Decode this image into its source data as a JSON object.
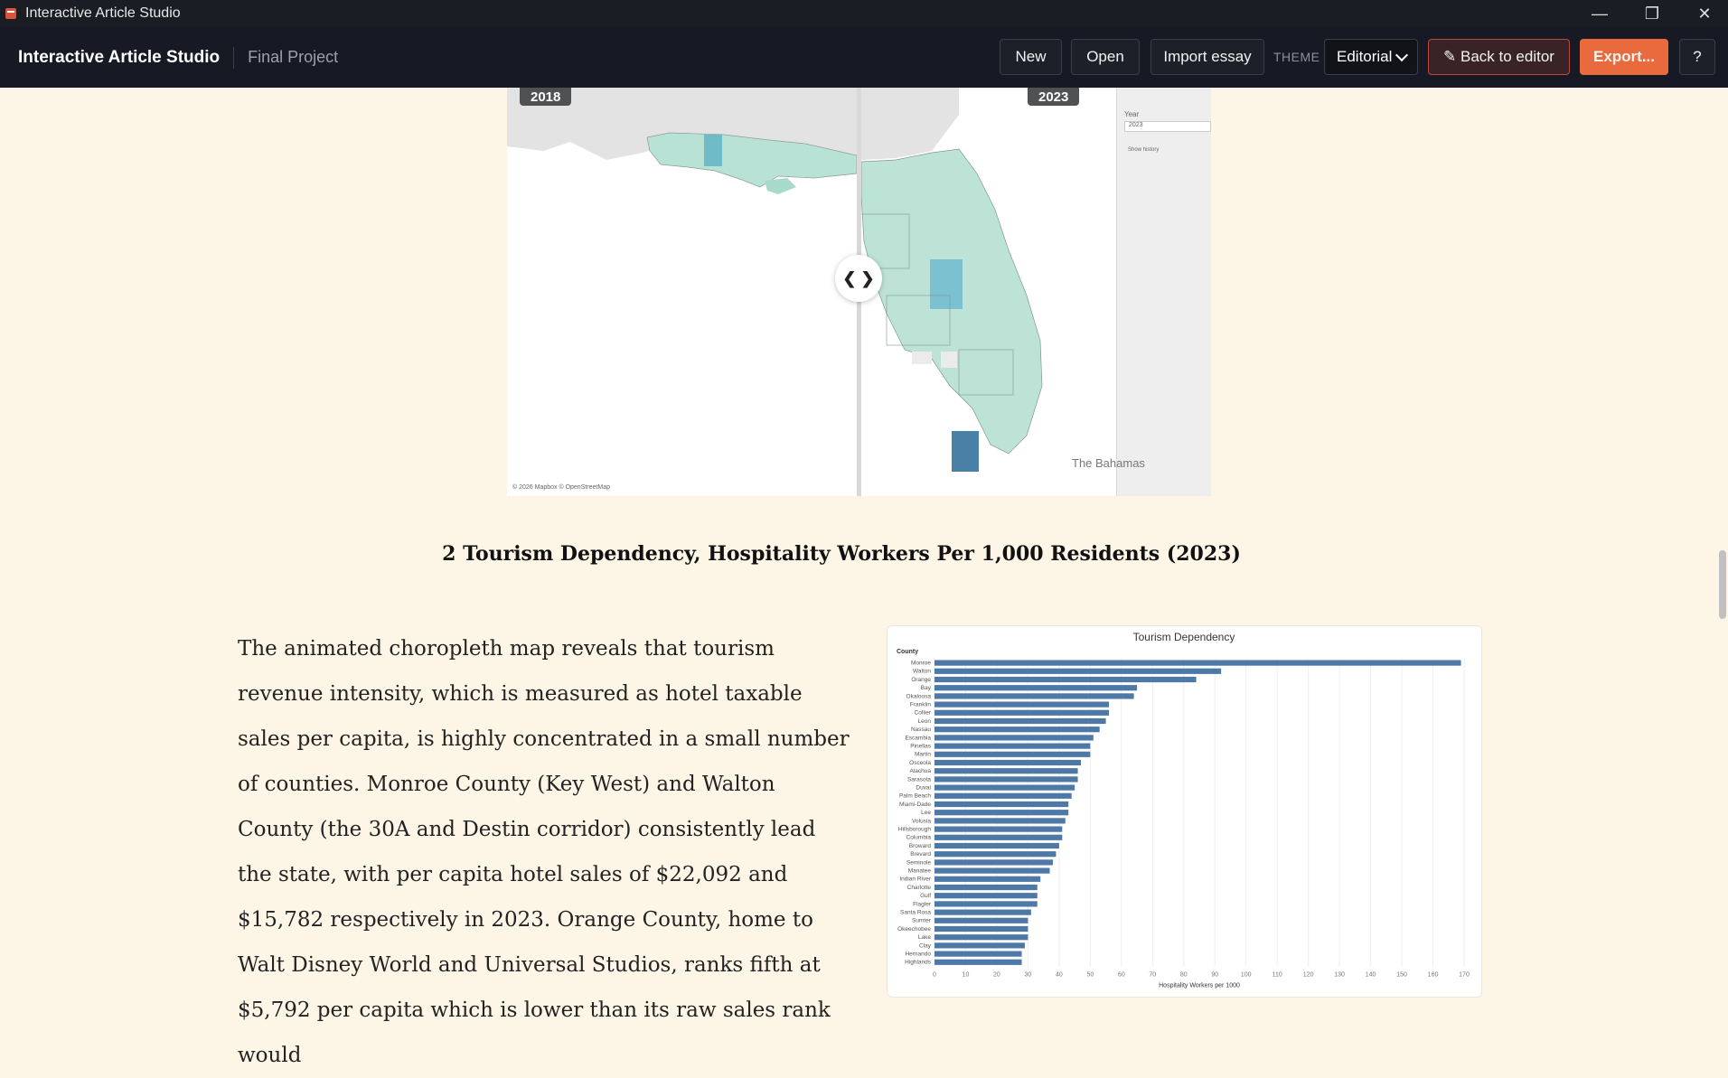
{
  "window": {
    "title": "Interactive Article Studio"
  },
  "toolbar": {
    "brand": "Interactive Article Studio",
    "project": "Final Project",
    "new_label": "New",
    "open_label": "Open",
    "import_label": "Import essay",
    "theme_label": "THEME",
    "theme_value": "Editorial",
    "back_label": "✎ Back to editor",
    "export_label": "Export...",
    "help_label": "?"
  },
  "map": {
    "left_year": "2018",
    "right_year": "2023",
    "panel_year_label": "Year",
    "panel_year_value": "2023",
    "panel_history": "Show history",
    "credit": "© 2026 Mapbox © OpenStreetMap",
    "bahamas": "The Bahamas",
    "handle": "❮ ❯"
  },
  "figure": {
    "caption": "2 Tourism Dependency, Hospitality Workers Per 1,000 Residents (2023)"
  },
  "article": {
    "paragraph": "The animated choropleth map reveals that tourism revenue intensity, which is measured as hotel taxable sales per capita, is highly concentrated in a small number of counties. Monroe County (Key West) and Walton County (the 30A and Destin corridor) consistently lead the state, with per capita hotel sales of $22,092 and $15,782 respectively in 2023. Orange County, home to Walt Disney World and Universal Studios, ranks fifth at $5,792 per capita which is lower than its raw sales rank would"
  },
  "chart_data": {
    "type": "bar",
    "orientation": "horizontal",
    "title": "Tourism Dependency",
    "ylabel": "County",
    "xlabel": "Hospitality Workers per 1000",
    "xlim": [
      0,
      170
    ],
    "xticks": [
      0,
      10,
      20,
      30,
      40,
      50,
      60,
      70,
      80,
      90,
      100,
      110,
      120,
      130,
      140,
      150,
      160,
      170
    ],
    "categories": [
      "Monroe",
      "Walton",
      "Orange",
      "Bay",
      "Okaloosa",
      "Franklin",
      "Collier",
      "Leon",
      "Nassau",
      "Escambia",
      "Pinellas",
      "Martin",
      "Osceola",
      "Alachua",
      "Sarasota",
      "Duval",
      "Palm Beach",
      "Miami-Dade",
      "Lee",
      "Volusia",
      "Hillsborough",
      "Columbia",
      "Broward",
      "Brevard",
      "Seminole",
      "Manatee",
      "Indian River",
      "Charlotte",
      "Gulf",
      "Flagler",
      "Santa Rosa",
      "Sumter",
      "Okeechobee",
      "Lake",
      "Clay",
      "Hernando",
      "Highlands"
    ],
    "values": [
      169,
      92,
      84,
      65,
      64,
      56,
      56,
      55,
      53,
      51,
      50,
      50,
      47,
      46,
      46,
      45,
      44,
      43,
      43,
      42,
      41,
      41,
      40,
      39,
      38,
      37,
      34,
      33,
      33,
      33,
      31,
      30,
      30,
      30,
      29,
      28,
      28
    ],
    "bar_color": "#4e79a7"
  }
}
